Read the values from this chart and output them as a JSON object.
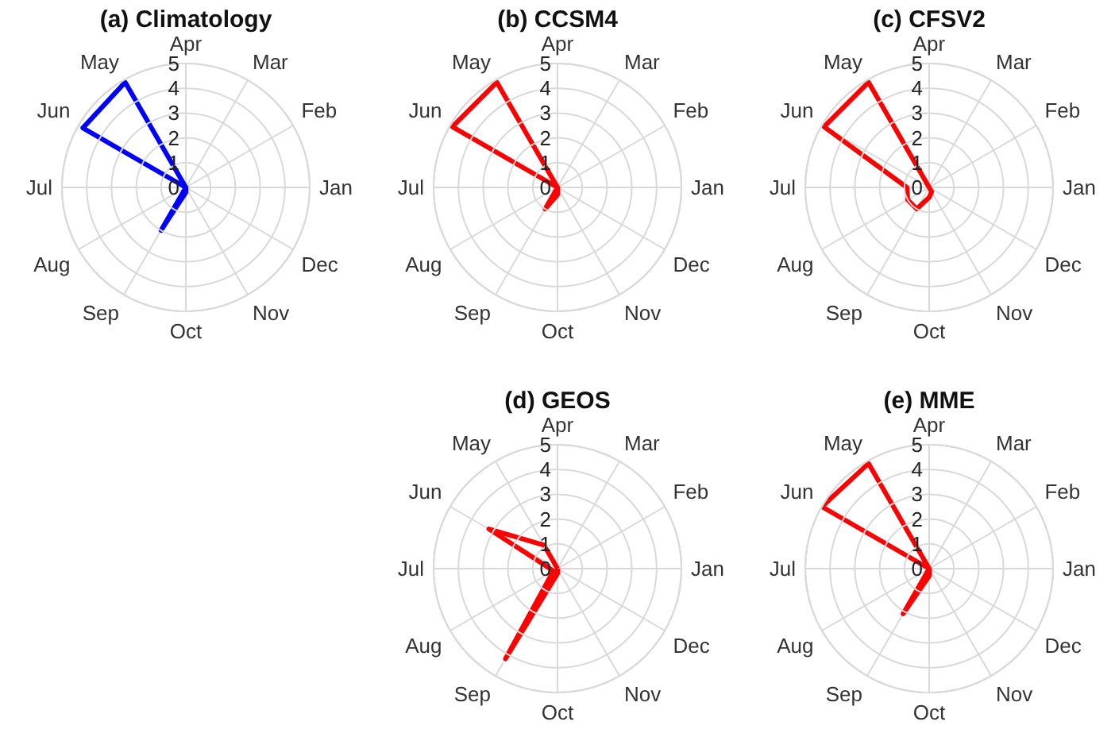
{
  "chart_data": [
    {
      "type": "radar",
      "title": "(a) Climatology",
      "categories": [
        "Apr",
        "Mar",
        "Feb",
        "Jan",
        "Dec",
        "Nov",
        "Oct",
        "Sep",
        "Aug",
        "Jul",
        "Jun",
        "May"
      ],
      "series": [
        {
          "color": "#0000ff",
          "values": [
            0,
            0,
            0,
            0,
            0,
            0,
            0.2,
            2,
            0,
            0,
            4.8,
            4.9
          ]
        }
      ],
      "ylim": [
        0,
        5
      ],
      "yticks": [
        0,
        1,
        2,
        3,
        4,
        5
      ],
      "grid": true
    },
    {
      "type": "radar",
      "title": "(b) CCSM4",
      "categories": [
        "Apr",
        "Mar",
        "Feb",
        "Jan",
        "Dec",
        "Nov",
        "Oct",
        "Sep",
        "Aug",
        "Jul",
        "Jun",
        "May"
      ],
      "series": [
        {
          "color": "#ff0000",
          "values": [
            0,
            0,
            0,
            0,
            0,
            0,
            0.3,
            1,
            0,
            0,
            4.9,
            4.9
          ]
        }
      ],
      "ylim": [
        0,
        5
      ],
      "yticks": [
        0,
        1,
        2,
        3,
        4,
        5
      ],
      "grid": true
    },
    {
      "type": "radar",
      "title": "(c) CFSV2",
      "categories": [
        "Apr",
        "Mar",
        "Feb",
        "Jan",
        "Dec",
        "Nov",
        "Oct",
        "Sep",
        "Aug",
        "Jul",
        "Jun",
        "May"
      ],
      "series": [
        {
          "color": "#ff0000",
          "values": [
            0,
            0,
            0,
            0,
            0,
            0.2,
            0.4,
            1,
            1,
            0.9,
            4.9,
            4.9
          ]
        }
      ],
      "ylim": [
        0,
        5
      ],
      "yticks": [
        0,
        1,
        2,
        3,
        4,
        5
      ],
      "grid": true
    },
    {
      "type": "radar",
      "title": "(d) GEOS",
      "categories": [
        "Apr",
        "Mar",
        "Feb",
        "Jan",
        "Dec",
        "Nov",
        "Oct",
        "Sep",
        "Aug",
        "Jul",
        "Jun",
        "May"
      ],
      "series": [
        {
          "color": "#ff0000",
          "values": [
            0,
            0,
            0,
            0,
            0,
            0,
            0.2,
            4.2,
            0.2,
            0.3,
            3.2,
            1.1
          ]
        }
      ],
      "ylim": [
        0,
        5
      ],
      "yticks": [
        0,
        1,
        2,
        3,
        4,
        5
      ],
      "grid": true
    },
    {
      "type": "radar",
      "title": "(e) MME",
      "categories": [
        "Apr",
        "Mar",
        "Feb",
        "Jan",
        "Dec",
        "Nov",
        "Oct",
        "Sep",
        "Aug",
        "Jul",
        "Jun",
        "May"
      ],
      "series": [
        {
          "color": "#ff0000",
          "values": [
            0,
            0,
            0,
            0,
            0,
            0,
            0.3,
            2.1,
            0,
            0,
            5,
            4.9
          ]
        }
      ],
      "ylim": [
        0,
        5
      ],
      "yticks": [
        0,
        1,
        2,
        3,
        4,
        5
      ],
      "grid": true
    }
  ]
}
